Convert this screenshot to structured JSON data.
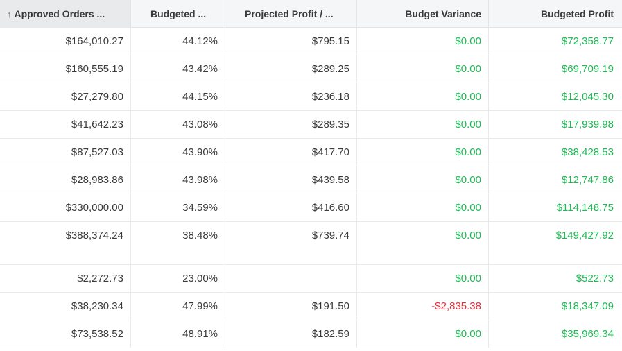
{
  "columns": {
    "approved_orders": "Approved Orders ...",
    "budgeted": "Budgeted ...",
    "projected_profit": "Projected Profit / ...",
    "budget_variance": "Budget Variance",
    "budgeted_profit": "Budgeted Profit"
  },
  "sort": {
    "icon": "arrow-up-icon",
    "direction": "ascending"
  },
  "colors": {
    "positive": "#1db954",
    "negative": "#e0303d",
    "text": "#3a3a3a",
    "header_bg": "#f5f6f8"
  },
  "rows": [
    {
      "approved_orders": "$164,010.27",
      "budgeted": "44.12%",
      "projected_profit": "$795.15",
      "budget_variance": "$0.00",
      "budgeted_profit": "$72,358.77"
    },
    {
      "approved_orders": "$160,555.19",
      "budgeted": "43.42%",
      "projected_profit": "$289.25",
      "budget_variance": "$0.00",
      "budgeted_profit": "$69,709.19"
    },
    {
      "approved_orders": "$27,279.80",
      "budgeted": "44.15%",
      "projected_profit": "$236.18",
      "budget_variance": "$0.00",
      "budgeted_profit": "$12,045.30"
    },
    {
      "approved_orders": "$41,642.23",
      "budgeted": "43.08%",
      "projected_profit": "$289.35",
      "budget_variance": "$0.00",
      "budgeted_profit": "$17,939.98"
    },
    {
      "approved_orders": "$87,527.03",
      "budgeted": "43.90%",
      "projected_profit": "$417.70",
      "budget_variance": "$0.00",
      "budgeted_profit": "$38,428.53"
    },
    {
      "approved_orders": "$28,983.86",
      "budgeted": "43.98%",
      "projected_profit": "$439.58",
      "budget_variance": "$0.00",
      "budgeted_profit": "$12,747.86"
    },
    {
      "approved_orders": "$330,000.00",
      "budgeted": "34.59%",
      "projected_profit": "$416.60",
      "budget_variance": "$0.00",
      "budgeted_profit": "$114,148.75"
    },
    {
      "approved_orders": "$388,374.24",
      "budgeted": "38.48%",
      "projected_profit": "$739.74",
      "budget_variance": "$0.00",
      "budgeted_profit": "$149,427.92"
    },
    {
      "approved_orders": "$2,272.73",
      "budgeted": "23.00%",
      "projected_profit": "",
      "budget_variance": "$0.00",
      "budgeted_profit": "$522.73"
    },
    {
      "approved_orders": "$38,230.34",
      "budgeted": "47.99%",
      "projected_profit": "$191.50",
      "budget_variance": "-$2,835.38",
      "budgeted_profit": "$18,347.09"
    },
    {
      "approved_orders": "$73,538.52",
      "budgeted": "48.91%",
      "projected_profit": "$182.59",
      "budget_variance": "$0.00",
      "budgeted_profit": "$35,969.34"
    }
  ]
}
